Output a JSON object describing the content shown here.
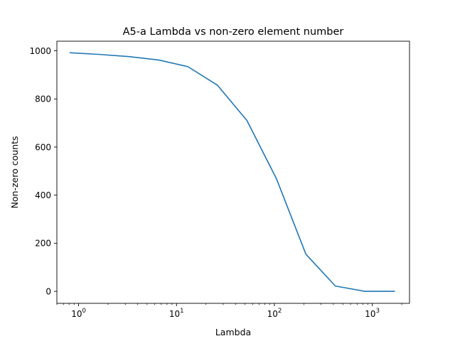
{
  "chart_data": {
    "type": "line",
    "title": "A5-a Lambda vs non-zero element number",
    "xlabel": "Lambda",
    "ylabel": "Non-zero counts",
    "xscale": "log",
    "xlim": [
      0.6,
      2400
    ],
    "ylim": [
      -50,
      1040
    ],
    "x_ticks": [
      {
        "value": 1,
        "base": "10",
        "exp": "0"
      },
      {
        "value": 10,
        "base": "10",
        "exp": "1"
      },
      {
        "value": 100,
        "base": "10",
        "exp": "2"
      },
      {
        "value": 1000,
        "base": "10",
        "exp": "3"
      }
    ],
    "y_ticks": [
      {
        "value": 0,
        "label": "0"
      },
      {
        "value": 200,
        "label": "200"
      },
      {
        "value": 400,
        "label": "400"
      },
      {
        "value": 600,
        "label": "600"
      },
      {
        "value": 800,
        "label": "800"
      },
      {
        "value": 1000,
        "label": "1000"
      }
    ],
    "grid": false,
    "series": [
      {
        "color": "#1f77b4",
        "x": [
          0.82,
          1.64,
          3.28,
          6.56,
          13.1,
          26.2,
          52.5,
          105,
          210,
          420,
          840,
          1680
        ],
        "y": [
          992,
          985,
          976,
          962,
          934,
          857,
          710,
          468,
          154,
          22,
          0,
          0
        ]
      }
    ]
  }
}
